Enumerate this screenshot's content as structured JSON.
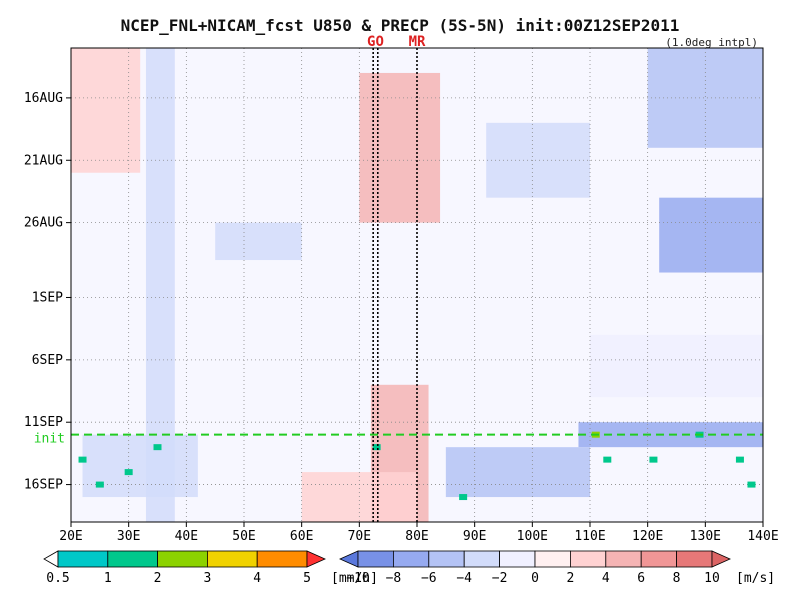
{
  "chart_data": {
    "type": "heatmap",
    "title": "NCEP_FNL+NICAM_fcst U850 & PRECP (5S-5N) init:00Z12SEP2011",
    "subtitle": "(1.0deg intpl)",
    "x_ticks": [
      "20E",
      "30E",
      "40E",
      "50E",
      "60E",
      "70E",
      "80E",
      "90E",
      "100E",
      "110E",
      "120E",
      "130E",
      "140E"
    ],
    "x_tick_values": [
      20,
      30,
      40,
      50,
      60,
      70,
      80,
      90,
      100,
      110,
      120,
      130,
      140
    ],
    "xlim": [
      20,
      140
    ],
    "y_ticks": [
      "16AUG",
      "21AUG",
      "26AUG",
      "1SEP",
      "6SEP",
      "11SEP",
      "16SEP"
    ],
    "y_tick_values": [
      "2011-08-16",
      "2011-08-21",
      "2011-08-26",
      "2011-09-01",
      "2011-09-06",
      "2011-09-11",
      "2011-09-16"
    ],
    "ylim": [
      "2011-08-12",
      "2011-09-19"
    ],
    "y_direction": "time increases downward",
    "grid": true,
    "init_line": {
      "label": "init",
      "date": "2011-09-12",
      "color": "#22cc22"
    },
    "marker_lines": [
      {
        "label": "GO",
        "lon": [
          72.4,
          73.2
        ]
      },
      {
        "label": "MR",
        "lon": 80
      }
    ],
    "wind_regions": [
      {
        "lon": [
          33,
          38
        ],
        "dates": [
          "2011-08-12",
          "2011-09-19"
        ],
        "u": -3
      },
      {
        "lon": [
          20,
          32
        ],
        "dates": [
          "2011-08-12",
          "2011-08-22"
        ],
        "u": 2
      },
      {
        "lon": [
          70,
          84
        ],
        "dates": [
          "2011-08-14",
          "2011-08-26"
        ],
        "u": 4
      },
      {
        "lon": [
          72,
          82
        ],
        "dates": [
          "2011-09-08",
          "2011-09-19"
        ],
        "u": 4
      },
      {
        "lon": [
          60,
          80
        ],
        "dates": [
          "2011-09-15",
          "2011-09-19"
        ],
        "u": 3
      },
      {
        "lon": [
          92,
          110
        ],
        "dates": [
          "2011-08-18",
          "2011-08-24"
        ],
        "u": -4
      },
      {
        "lon": [
          120,
          140
        ],
        "dates": [
          "2011-08-12",
          "2011-08-20"
        ],
        "u": -5
      },
      {
        "lon": [
          122,
          140
        ],
        "dates": [
          "2011-08-24",
          "2011-08-30"
        ],
        "u": -8
      },
      {
        "lon": [
          108,
          140
        ],
        "dates": [
          "2011-09-11",
          "2011-09-13"
        ],
        "u": -8
      },
      {
        "lon": [
          85,
          110
        ],
        "dates": [
          "2011-09-13",
          "2011-09-17"
        ],
        "u": -5
      },
      {
        "lon": [
          22,
          42
        ],
        "dates": [
          "2011-09-12",
          "2011-09-17"
        ],
        "u": -4
      },
      {
        "lon": [
          45,
          60
        ],
        "dates": [
          "2011-08-26",
          "2011-08-29"
        ],
        "u": -3
      },
      {
        "lon": [
          110,
          140
        ],
        "dates": [
          "2011-09-04",
          "2011-09-09"
        ],
        "u": -2
      }
    ],
    "precip_marks": [
      {
        "lon": 22,
        "date": "2011-09-14",
        "mm_h": 2
      },
      {
        "lon": 25,
        "date": "2011-09-16",
        "mm_h": 2
      },
      {
        "lon": 30,
        "date": "2011-09-15",
        "mm_h": 2
      },
      {
        "lon": 35,
        "date": "2011-09-13",
        "mm_h": 2
      },
      {
        "lon": 73,
        "date": "2011-09-13",
        "mm_h": 2
      },
      {
        "lon": 88,
        "date": "2011-09-17",
        "mm_h": 2
      },
      {
        "lon": 111,
        "date": "2011-09-12",
        "mm_h": 3
      },
      {
        "lon": 113,
        "date": "2011-09-14",
        "mm_h": 2
      },
      {
        "lon": 121,
        "date": "2011-09-14",
        "mm_h": 2
      },
      {
        "lon": 129,
        "date": "2011-09-12",
        "mm_h": 2
      },
      {
        "lon": 136,
        "date": "2011-09-14",
        "mm_h": 2
      },
      {
        "lon": 138,
        "date": "2011-09-16",
        "mm_h": 2
      }
    ],
    "precip_colorbar": {
      "labels": [
        "0.5",
        "1",
        "2",
        "3",
        "4",
        "5"
      ],
      "unit": "[mm/h]",
      "colors": [
        "#00c8c8",
        "#00c88c",
        "#8cd200",
        "#f0d200",
        "#ff8c00",
        "#ff3232"
      ]
    },
    "wind_colorbar": {
      "labels": [
        "−10",
        "−8",
        "−6",
        "−4",
        "−2",
        "0",
        "2",
        "4",
        "6",
        "8",
        "10"
      ],
      "unit": "[m/s]",
      "colors": [
        "#5a78dc",
        "#7891e6",
        "#96aaf0",
        "#b4c3f5",
        "#d2dcfa",
        "#f0f0ff",
        "#fff0f0",
        "#ffd2d2",
        "#f5b4b4",
        "#f09696",
        "#e67878",
        "#dc6464"
      ]
    }
  }
}
